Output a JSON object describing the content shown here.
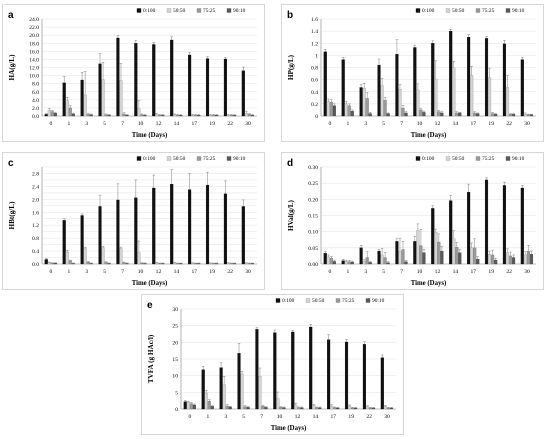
{
  "colors": {
    "series_fills": [
      "#111111",
      "#d4d4d4",
      "#9a9a9a",
      "#5a5a5a"
    ],
    "series_strokes": [
      "#000000",
      "#8c8c8c",
      "#6e6e6e",
      "#3c3c3c"
    ]
  },
  "chart_data": [
    {
      "panel": "a",
      "type": "bar",
      "title": "",
      "ylabel": "HA(g/L)",
      "xlabel": "Time (Days)",
      "ylim": [
        0,
        24
      ],
      "yticks": [
        0,
        2,
        4,
        6,
        8,
        10,
        12,
        14,
        16,
        18,
        20,
        22,
        24
      ],
      "ytick_labels": [
        "0.0",
        "2.0",
        "4.0",
        "6.0",
        "8.0",
        "10.0",
        "12.0",
        "14.0",
        "16.0",
        "18.0",
        "20.0",
        "22.0",
        "24.0"
      ],
      "categories": [
        "0",
        "1",
        "3",
        "5",
        "7",
        "10",
        "12",
        "14",
        "17",
        "19",
        "22",
        "30"
      ],
      "legend": "top-right",
      "series": [
        {
          "name": "0:100",
          "values": [
            0.4,
            8.2,
            8.9,
            12.9,
            19.3,
            18.0,
            17.7,
            18.8,
            15.1,
            14.2,
            14.1,
            11.2
          ],
          "errors": [
            0.2,
            1.6,
            1.9,
            2.5,
            0.6,
            0.7,
            0.5,
            0.8,
            0.6,
            0.5,
            0.4,
            0.9
          ]
        },
        {
          "name": "50:50",
          "values": [
            1.4,
            3.8,
            5.2,
            9.0,
            8.7,
            1.8,
            0.3,
            0.3,
            0.2,
            0.2,
            0.2,
            0.7
          ],
          "errors": [
            0.4,
            0.8,
            5.8,
            4.3,
            4.3,
            2.0,
            0.3,
            0.2,
            0.2,
            0.2,
            0.2,
            0.5
          ]
        },
        {
          "name": "75:25",
          "values": [
            1.1,
            2.0,
            0.4,
            0.3,
            0.5,
            0.3,
            0.2,
            0.2,
            0.2,
            0.2,
            0.2,
            0.4
          ],
          "errors": [
            0.2,
            0.6,
            0.3,
            0.2,
            0.3,
            0.2,
            0.2,
            0.2,
            0.2,
            0.2,
            0.2,
            0.2
          ]
        },
        {
          "name": "90:10",
          "values": [
            0.7,
            0.5,
            0.3,
            0.2,
            0.2,
            0.2,
            0.2,
            0.2,
            0.2,
            0.2,
            0.2,
            0.2
          ],
          "errors": [
            0.2,
            0.2,
            0.2,
            0.2,
            0.2,
            0.2,
            0.2,
            0.2,
            0.2,
            0.2,
            0.2,
            0.2
          ]
        }
      ]
    },
    {
      "panel": "b",
      "type": "bar",
      "title": "",
      "ylabel": "HP(g/L)",
      "xlabel": "Time (Days)",
      "ylim": [
        0,
        1.6
      ],
      "yticks": [
        0,
        0.2,
        0.4,
        0.6,
        0.8,
        1.0,
        1.2,
        1.4,
        1.6
      ],
      "ytick_labels": [
        "0",
        "0.2",
        "0.4",
        "0.6",
        "0.8",
        "1",
        "1.2",
        "1.4",
        "1.6"
      ],
      "categories": [
        "0",
        "1",
        "3",
        "5",
        "7",
        "10",
        "12",
        "14",
        "17",
        "19",
        "22",
        "30"
      ],
      "legend": "top-right",
      "series": [
        {
          "name": "0:100",
          "values": [
            1.06,
            0.93,
            0.47,
            0.84,
            1.02,
            1.13,
            1.2,
            1.4,
            1.3,
            1.28,
            1.19,
            0.93
          ],
          "errors": [
            0.04,
            0.04,
            0.05,
            0.1,
            0.24,
            0.04,
            0.04,
            0.03,
            0.04,
            0.03,
            0.06,
            0.04
          ]
        },
        {
          "name": "50:50",
          "values": [
            0.24,
            0.2,
            0.46,
            0.5,
            0.44,
            0.43,
            0.61,
            0.8,
            0.67,
            0.63,
            0.47,
            0.03
          ],
          "errors": [
            0.04,
            0.04,
            0.08,
            0.12,
            0.08,
            0.1,
            0.3,
            0.1,
            0.15,
            0.16,
            0.2,
            0.02
          ]
        },
        {
          "name": "75:25",
          "values": [
            0.23,
            0.17,
            0.29,
            0.26,
            0.13,
            0.1,
            0.07,
            0.05,
            0.05,
            0.04,
            0.03,
            0.02
          ],
          "errors": [
            0.04,
            0.03,
            0.1,
            0.05,
            0.04,
            0.03,
            0.02,
            0.02,
            0.02,
            0.02,
            0.01,
            0.01
          ]
        },
        {
          "name": "90:10",
          "values": [
            0.17,
            0.08,
            0.04,
            0.04,
            0.05,
            0.06,
            0.05,
            0.05,
            0.04,
            0.03,
            0.03,
            0.02
          ],
          "errors": [
            0.03,
            0.02,
            0.02,
            0.01,
            0.02,
            0.02,
            0.02,
            0.01,
            0.01,
            0.01,
            0.01,
            0.01
          ]
        }
      ]
    },
    {
      "panel": "c",
      "type": "bar",
      "title": "",
      "ylabel": "HBt(g/L)",
      "xlabel": "Time (Days)",
      "ylim": [
        0,
        3.0
      ],
      "yticks": [
        0,
        0.2,
        0.4,
        0.6,
        0.8,
        1.0,
        1.2,
        1.4,
        1.6,
        1.8,
        2.0,
        2.2,
        2.4,
        2.6,
        2.8,
        3.0
      ],
      "ytick_labels": [
        "0.0",
        "",
        "0.4",
        "",
        "0.8",
        "",
        "1.2",
        "",
        "1.6",
        "",
        "2.0",
        "",
        "2.4",
        "",
        "2.8",
        ""
      ],
      "categories": [
        "0",
        "1",
        "3",
        "5",
        "7",
        "10",
        "12",
        "14",
        "17",
        "19",
        "22",
        "30"
      ],
      "legend": "top-right",
      "series": [
        {
          "name": "0:100",
          "values": [
            0.14,
            1.35,
            1.5,
            1.78,
            1.98,
            2.05,
            2.35,
            2.47,
            2.3,
            2.44,
            2.17,
            1.78
          ],
          "errors": [
            0.03,
            0.05,
            0.05,
            0.35,
            0.5,
            0.55,
            0.4,
            0.45,
            0.5,
            0.4,
            0.4,
            0.2
          ]
        },
        {
          "name": "50:50",
          "values": [
            0.04,
            0.37,
            0.47,
            0.5,
            0.47,
            0.36,
            0.03,
            0.03,
            0.02,
            0.02,
            0.02,
            0.02
          ],
          "errors": [
            0.02,
            0.05,
            0.05,
            0.05,
            0.05,
            0.35,
            0.02,
            0.02,
            0.02,
            0.02,
            0.02,
            0.02
          ]
        },
        {
          "name": "75:25",
          "values": [
            0.03,
            0.1,
            0.06,
            0.05,
            0.04,
            0.03,
            0.02,
            0.02,
            0.02,
            0.02,
            0.02,
            0.02
          ],
          "errors": [
            0.01,
            0.02,
            0.02,
            0.02,
            0.02,
            0.01,
            0.01,
            0.01,
            0.01,
            0.01,
            0.01,
            0.01
          ]
        },
        {
          "name": "90:10",
          "values": [
            0.03,
            0.02,
            0.02,
            0.02,
            0.02,
            0.02,
            0.02,
            0.02,
            0.02,
            0.02,
            0.02,
            0.02
          ],
          "errors": [
            0.01,
            0.01,
            0.01,
            0.01,
            0.01,
            0.01,
            0.01,
            0.01,
            0.01,
            0.01,
            0.01,
            0.01
          ]
        }
      ]
    },
    {
      "panel": "d",
      "type": "bar",
      "title": "",
      "ylabel": "HVal(g/L)",
      "xlabel": "Time (Days)",
      "ylim": [
        0,
        0.3
      ],
      "yticks": [
        0,
        0.05,
        0.1,
        0.15,
        0.2,
        0.25,
        0.3
      ],
      "ytick_labels": [
        "0.00",
        "0.05",
        "0.10",
        "0.15",
        "0.20",
        "0.25",
        "0.30"
      ],
      "categories": [
        "0",
        "1",
        "3",
        "5",
        "7",
        "10",
        "12",
        "14",
        "17",
        "19",
        "22",
        "30"
      ],
      "legend": "top-right",
      "series": [
        {
          "name": "0:100",
          "values": [
            0.033,
            0.01,
            0.05,
            0.04,
            0.07,
            0.07,
            0.172,
            0.196,
            0.222,
            0.26,
            0.243,
            0.235
          ],
          "errors": [
            0.005,
            0.004,
            0.008,
            0.005,
            0.01,
            0.015,
            0.008,
            0.016,
            0.025,
            0.007,
            0.01,
            0.008
          ]
        },
        {
          "name": "50:50",
          "values": [
            0.022,
            0.008,
            0.008,
            0.028,
            0.04,
            0.104,
            0.098,
            0.078,
            0.05,
            0.03,
            0.035,
            0.028
          ],
          "errors": [
            0.006,
            0.004,
            0.005,
            0.02,
            0.04,
            0.02,
            0.01,
            0.025,
            0.015,
            0.01,
            0.012,
            0.01
          ]
        },
        {
          "name": "75:25",
          "values": [
            0.018,
            0.007,
            0.02,
            0.02,
            0.045,
            0.057,
            0.068,
            0.052,
            0.05,
            0.028,
            0.025,
            0.04
          ],
          "errors": [
            0.005,
            0.004,
            0.018,
            0.015,
            0.025,
            0.05,
            0.025,
            0.015,
            0.028,
            0.015,
            0.012,
            0.018
          ]
        },
        {
          "name": "90:10",
          "values": [
            0.008,
            0.006,
            0.005,
            0.004,
            0.007,
            0.035,
            0.04,
            0.035,
            0.015,
            0.012,
            0.02,
            0.03
          ],
          "errors": [
            0.004,
            0.003,
            0.003,
            0.003,
            0.004,
            0.01,
            0.015,
            0.01,
            0.008,
            0.006,
            0.008,
            0.01
          ]
        }
      ]
    },
    {
      "panel": "e",
      "type": "bar",
      "title": "",
      "ylabel": "TVFA (g HAc/l)",
      "xlabel": "Time (Days)",
      "ylim": [
        0,
        30
      ],
      "yticks": [
        0,
        5,
        10,
        15,
        20,
        25,
        30
      ],
      "ytick_labels": [
        "0",
        "5",
        "10",
        "15",
        "20",
        "25",
        "30"
      ],
      "categories": [
        "0",
        "1",
        "3",
        "5",
        "7",
        "10",
        "12",
        "14",
        "17",
        "19",
        "22",
        "30"
      ],
      "legend": "top-right",
      "series": [
        {
          "name": "0:100",
          "values": [
            2.2,
            11.8,
            12.4,
            16.7,
            23.9,
            22.9,
            23.1,
            24.6,
            20.8,
            20.1,
            19.4,
            15.4
          ],
          "errors": [
            0.3,
            1.0,
            1.5,
            3.0,
            0.5,
            0.8,
            0.5,
            0.8,
            1.5,
            0.8,
            0.8,
            0.8
          ]
        },
        {
          "name": "50:50",
          "values": [
            2.0,
            4.8,
            7.3,
            10.5,
            9.8,
            3.1,
            1.2,
            1.1,
            0.9,
            0.9,
            0.7,
            0.8
          ],
          "errors": [
            0.3,
            0.8,
            2.5,
            0.8,
            2.5,
            2.0,
            0.5,
            0.3,
            0.4,
            0.3,
            0.3,
            0.3
          ]
        },
        {
          "name": "75:25",
          "values": [
            1.6,
            2.3,
            0.9,
            0.7,
            0.8,
            0.5,
            0.4,
            0.4,
            0.4,
            0.3,
            0.3,
            0.3
          ],
          "errors": [
            0.3,
            0.5,
            0.4,
            0.3,
            0.3,
            0.2,
            0.2,
            0.2,
            0.2,
            0.2,
            0.2,
            0.2
          ]
        },
        {
          "name": "90:10",
          "values": [
            1.2,
            0.8,
            0.6,
            0.5,
            0.5,
            0.4,
            0.4,
            0.4,
            0.3,
            0.3,
            0.3,
            0.3
          ],
          "errors": [
            0.3,
            0.2,
            0.2,
            0.2,
            0.2,
            0.2,
            0.2,
            0.2,
            0.2,
            0.2,
            0.2,
            0.2
          ]
        }
      ]
    }
  ]
}
